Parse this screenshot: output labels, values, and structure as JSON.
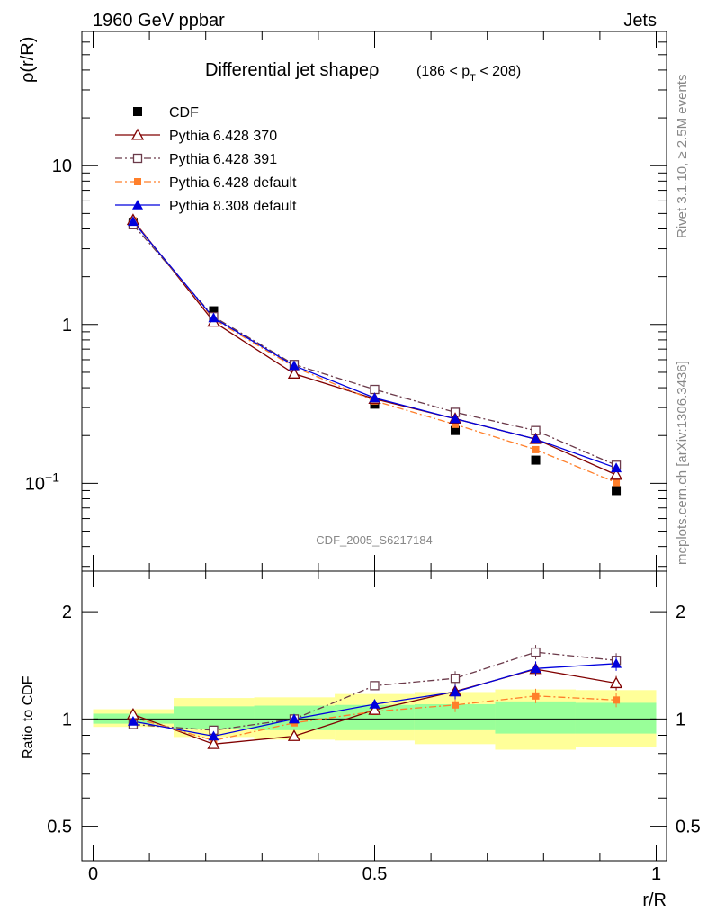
{
  "header": {
    "left": "1960 GeV ppbar",
    "right": "Jets"
  },
  "side": {
    "rivet": "Rivet 3.1.10, ≥ 2.5M events",
    "mcplots": "mcplots.cern.ch [arXiv:1306.3436]"
  },
  "chart_data": [
    {
      "type": "line",
      "title_main": "Differential jet shapeρ",
      "title_sub": "(186 < p",
      "title_sub_T": "T",
      "title_sub_end": " < 208)",
      "watermark": "CDF_2005_S6217184",
      "ylabel": "ρ(r/R)",
      "yscale": "log",
      "ylim": [
        0.028,
        70
      ],
      "xlim": [
        -0.02,
        1.0
      ],
      "yticks": [
        {
          "v": 10,
          "label": "10"
        },
        {
          "v": 1,
          "label": "1"
        },
        {
          "v": 0.1,
          "label": "10",
          "sup": "−1"
        }
      ],
      "x": [
        0.071,
        0.214,
        0.357,
        0.5,
        0.643,
        0.786,
        0.929
      ],
      "series": [
        {
          "name": "CDF",
          "color": "#000000",
          "marker": "square-filled",
          "line": "none",
          "values": [
            4.4,
            1.22,
            0.55,
            0.315,
            0.215,
            0.14,
            0.09
          ]
        },
        {
          "name": "Pythia 6.428 370",
          "color": "#800000",
          "marker": "triangle-open",
          "line": "solid",
          "values": [
            4.55,
            1.04,
            0.49,
            0.34,
            0.255,
            0.19,
            0.113
          ]
        },
        {
          "name": "Pythia 6.428 391",
          "color": "#6b3a4a",
          "marker": "square-open",
          "line": "dashdot",
          "values": [
            4.25,
            1.12,
            0.56,
            0.39,
            0.28,
            0.215,
            0.13
          ]
        },
        {
          "name": "Pythia 6.428 default",
          "color": "#ff7f2a",
          "marker": "square-filled-small",
          "line": "dashdot",
          "values": [
            4.5,
            1.08,
            0.54,
            0.33,
            0.235,
            0.163,
            0.101
          ]
        },
        {
          "name": "Pythia 8.308 default",
          "color": "#0000dd",
          "marker": "triangle-filled",
          "line": "solid",
          "values": [
            4.45,
            1.1,
            0.55,
            0.345,
            0.255,
            0.19,
            0.125
          ]
        }
      ]
    },
    {
      "type": "line",
      "xlabel": "r/R",
      "ylabel": "Ratio to CDF",
      "yscale": "log",
      "ylim": [
        0.4,
        2.6
      ],
      "xticks": [
        {
          "v": 0,
          "label": "0"
        },
        {
          "v": 0.5,
          "label": "0.5"
        },
        {
          "v": 1,
          "label": "1"
        }
      ],
      "yticks": [
        {
          "v": 2,
          "label": "2"
        },
        {
          "v": 1,
          "label": "1"
        },
        {
          "v": 0.5,
          "label": "0.5"
        }
      ],
      "bands": [
        {
          "x0": 0.0,
          "x1": 0.143,
          "yellow": [
            0.95,
            1.065
          ],
          "green": [
            0.97,
            1.035
          ]
        },
        {
          "x0": 0.143,
          "x1": 0.286,
          "yellow": [
            0.89,
            1.145
          ],
          "green": [
            0.94,
            1.085
          ]
        },
        {
          "x0": 0.286,
          "x1": 0.429,
          "yellow": [
            0.875,
            1.15
          ],
          "green": [
            0.93,
            1.09
          ]
        },
        {
          "x0": 0.429,
          "x1": 0.571,
          "yellow": [
            0.87,
            1.175
          ],
          "green": [
            0.93,
            1.095
          ]
        },
        {
          "x0": 0.571,
          "x1": 0.714,
          "yellow": [
            0.85,
            1.19
          ],
          "green": [
            0.93,
            1.1
          ]
        },
        {
          "x0": 0.714,
          "x1": 0.857,
          "yellow": [
            0.82,
            1.21
          ],
          "green": [
            0.91,
            1.12
          ]
        },
        {
          "x0": 0.857,
          "x1": 1.0,
          "yellow": [
            0.835,
            1.205
          ],
          "green": [
            0.91,
            1.11
          ]
        }
      ],
      "x": [
        0.071,
        0.214,
        0.357,
        0.5,
        0.643,
        0.786,
        0.929
      ],
      "series": [
        {
          "name": "Pythia 6.428 370",
          "values": [
            1.03,
            0.85,
            0.895,
            1.06,
            1.195,
            1.38,
            1.26
          ]
        },
        {
          "name": "Pythia 6.428 391",
          "values": [
            0.965,
            0.93,
            1.0,
            1.24,
            1.3,
            1.54,
            1.46
          ]
        },
        {
          "name": "Pythia 6.428 default",
          "values": [
            1.01,
            0.87,
            0.975,
            1.05,
            1.095,
            1.16,
            1.13
          ]
        },
        {
          "name": "Pythia 8.308 default",
          "values": [
            0.985,
            0.895,
            1.0,
            1.1,
            1.19,
            1.385,
            1.43
          ]
        }
      ]
    }
  ]
}
